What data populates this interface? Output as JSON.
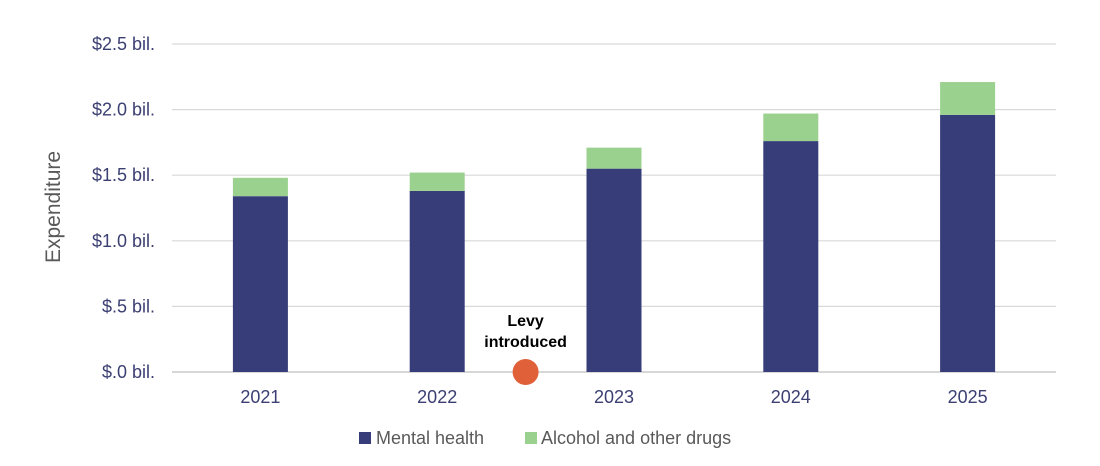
{
  "chart_data": {
    "type": "bar",
    "stacked": true,
    "categories": [
      "2021",
      "2022",
      "2023",
      "2024",
      "2025"
    ],
    "series": [
      {
        "name": "Mental health",
        "values": [
          1.34,
          1.38,
          1.55,
          1.76,
          1.96
        ],
        "color": "#363d79"
      },
      {
        "name": "Alcohol and other drugs",
        "values": [
          0.14,
          0.14,
          0.16,
          0.21,
          0.25
        ],
        "color": "#9bd18e"
      }
    ],
    "yticks": [
      {
        "value": 0.0,
        "label": "$.0 bil."
      },
      {
        "value": 0.5,
        "label": "$.5 bil."
      },
      {
        "value": 1.0,
        "label": "$1.0 bil."
      },
      {
        "value": 1.5,
        "label": "$1.5 bil."
      },
      {
        "value": 2.0,
        "label": "$2.0 bil."
      },
      {
        "value": 2.5,
        "label": "$2.5 bil."
      }
    ],
    "ylim": [
      0,
      2.5
    ],
    "ylabel": "Expenditure",
    "xlabel": "",
    "grid": true,
    "legend_position": "bottom-center",
    "annotation": {
      "text_line1": "Levy",
      "text_line2": "introduced",
      "x_between": [
        "2022",
        "2023"
      ],
      "y": 0.0,
      "marker_color": "#e0603a"
    }
  }
}
